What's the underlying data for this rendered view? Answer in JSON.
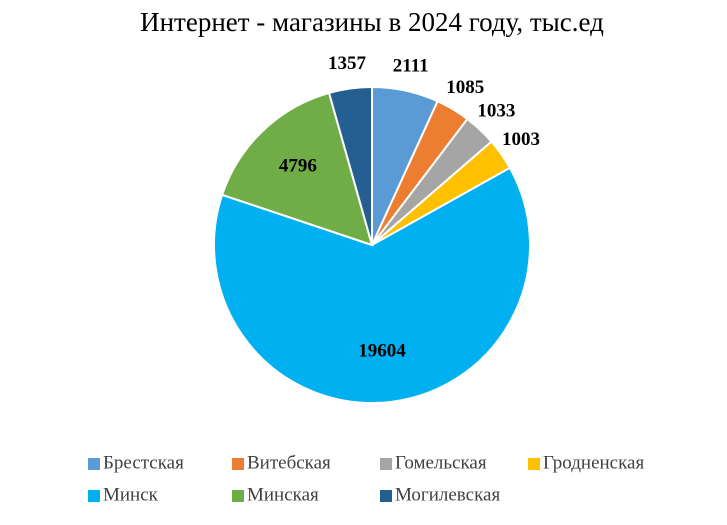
{
  "chart_data": {
    "type": "pie",
    "title": "Интернет - магазины в 2024 году, тыс.ед",
    "categories": [
      "Брестская",
      "Витебская",
      "Гомельская",
      "Гродненская",
      "Минск",
      "Минская",
      "Могилевская"
    ],
    "values": [
      2111,
      1085,
      1033,
      1003,
      19604,
      4796,
      1357
    ],
    "colors": [
      "#5b9bd5",
      "#ed7d31",
      "#a5a5a5",
      "#ffc000",
      "#00b0f0",
      "#70ad47",
      "#255e91"
    ],
    "legend": "bottom"
  }
}
